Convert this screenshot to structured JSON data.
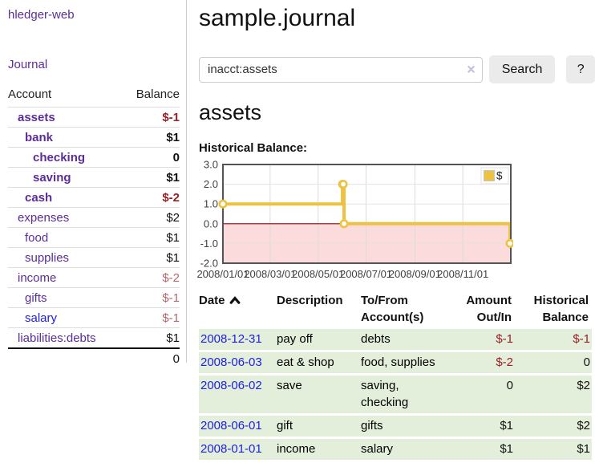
{
  "app": {
    "brand": "hledger-web",
    "nav": "Journal"
  },
  "colors": {
    "link_purple": "#5b2d9a",
    "link_blue": "#2020e0",
    "negative_bold": "#9d1f25",
    "negative_muted": "#b5656c",
    "row_green": "#e3efdb",
    "chart_line": "#edc240",
    "chart_negative_fill": "#fbdbdb",
    "chart_zero_line": "#8b0000",
    "button_gray": "#ebebeb"
  },
  "sidebar": {
    "account_header": "Account",
    "balance_header": "Balance",
    "accounts": [
      {
        "name": "assets",
        "indent": 1,
        "bold": true,
        "balance": "$-1",
        "neg": "bold"
      },
      {
        "name": "bank",
        "indent": 2,
        "bold": true,
        "balance": "$1",
        "neg": "none"
      },
      {
        "name": "checking",
        "indent": 3,
        "bold": true,
        "balance": "0",
        "neg": "none"
      },
      {
        "name": "saving",
        "indent": 3,
        "bold": true,
        "balance": "$1",
        "neg": "none"
      },
      {
        "name": "cash",
        "indent": 2,
        "bold": true,
        "balance": "$-2",
        "neg": "bold"
      },
      {
        "name": "expenses",
        "indent": 1,
        "bold": false,
        "balance": "$2",
        "neg": "none"
      },
      {
        "name": "food",
        "indent": 2,
        "bold": false,
        "balance": "$1",
        "neg": "none"
      },
      {
        "name": "supplies",
        "indent": 2,
        "bold": false,
        "balance": "$1",
        "neg": "none"
      },
      {
        "name": "income",
        "indent": 1,
        "bold": false,
        "balance": "$-2",
        "neg": "muted"
      },
      {
        "name": "gifts",
        "indent": 2,
        "bold": false,
        "balance": "$-1",
        "neg": "muted"
      },
      {
        "name": "salary",
        "indent": 2,
        "bold": false,
        "balance": "$-1",
        "neg": "muted",
        "blue": true
      },
      {
        "name": "liabilities:debts",
        "indent": 1,
        "bold": false,
        "balance": "$1",
        "neg": "none"
      }
    ],
    "total": "0"
  },
  "main": {
    "title": "sample.journal",
    "search": {
      "value": "inacct:assets",
      "clear": "×",
      "search_button": "Search",
      "help_button": "?"
    },
    "section_title": "assets",
    "chart_title": "Historical Balance:"
  },
  "chart_data": {
    "type": "line",
    "step": true,
    "title": "Historical Balance",
    "legend": [
      {
        "label": "$",
        "color": "#edc240"
      }
    ],
    "legend_position": "top-right",
    "grid": true,
    "x_range": [
      "2008-01-01",
      "2009-01-01"
    ],
    "ylim": [
      -2.0,
      3.0
    ],
    "yticks": [
      3.0,
      2.0,
      1.0,
      0.0,
      -1.0,
      -2.0
    ],
    "xtick_dates": [
      "2008-01-01",
      "2008-03-01",
      "2008-05-01",
      "2008-07-01",
      "2008-09-01",
      "2008-11-01"
    ],
    "xtick_labels": [
      "2008/01/01",
      "2008/03/01",
      "2008/05/01",
      "2008/07/01",
      "2008/09/01",
      "2008/11/01"
    ],
    "points": [
      {
        "x": "2008-01-01",
        "y": 1.0
      },
      {
        "x": "2008-06-01",
        "y": 2.0
      },
      {
        "x": "2008-06-02",
        "y": 2.0
      },
      {
        "x": "2008-06-03",
        "y": 0.0
      },
      {
        "x": "2008-12-31",
        "y": -1.0
      }
    ]
  },
  "register": {
    "headers": [
      "Date",
      "Description",
      "To/From Account(s)",
      "Amount Out/In",
      "Historical Balance"
    ],
    "sort_icon": "chevron-up",
    "rows": [
      {
        "date": "2008-12-31",
        "description": "pay off",
        "accounts": "debts",
        "amount": "$-1",
        "balance": "$-1"
      },
      {
        "date": "2008-06-03",
        "description": "eat & shop",
        "accounts": "food, supplies",
        "amount": "$-2",
        "balance": "0"
      },
      {
        "date": "2008-06-02",
        "description": "save",
        "accounts": "saving, checking",
        "amount": "0",
        "balance": "$2"
      },
      {
        "date": "2008-06-01",
        "description": "gift",
        "accounts": "gifts",
        "amount": "$1",
        "balance": "$2"
      },
      {
        "date": "2008-01-01",
        "description": "income",
        "accounts": "salary",
        "amount": "$1",
        "balance": "$1"
      }
    ]
  }
}
